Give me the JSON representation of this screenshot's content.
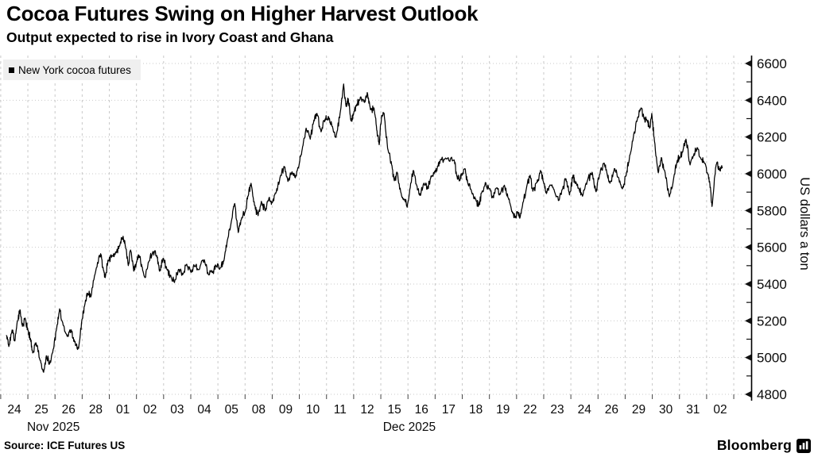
{
  "header": {
    "title": "Cocoa Futures Swing on Higher Harvest Outlook",
    "subtitle": "Output expected to rise in Ivory Coast and Ghana"
  },
  "legend": {
    "label": "New York cocoa futures"
  },
  "footer": {
    "source": "Source: ICE Futures US",
    "brand": "Bloomberg"
  },
  "chart_data": {
    "type": "line",
    "title": "Cocoa Futures Swing on Higher Harvest Outlook",
    "subtitle": "Output expected to rise in Ivory Coast and Ghana",
    "x_axis": {
      "unit": "trading-day index (0 = open of first session shown, Nov 24 2025)",
      "tick_labels": [
        "24",
        "25",
        "26",
        "28",
        "01",
        "02",
        "03",
        "04",
        "05",
        "08",
        "09",
        "10",
        "11",
        "12",
        "15",
        "16",
        "17",
        "18",
        "19",
        "22",
        "23",
        "24",
        "26",
        "29",
        "30",
        "31",
        "02"
      ],
      "month_labels": [
        {
          "label": "Nov 2025",
          "center_day": 1.94
        },
        {
          "label": "Dec 2025",
          "center_day": 15.05
        }
      ],
      "day_count": 27,
      "grid": true
    },
    "y_axis": {
      "title": "US dollars a ton",
      "min": 4800,
      "max": 6600,
      "major_step": 200,
      "minor_step": 100,
      "side": "right",
      "grid": true
    },
    "series": [
      {
        "name": "New York cocoa futures",
        "color": "#000000",
        "points": [
          [
            0.21,
            5120
          ],
          [
            0.3,
            5060
          ],
          [
            0.42,
            5150
          ],
          [
            0.52,
            5090
          ],
          [
            0.62,
            5200
          ],
          [
            0.71,
            5260
          ],
          [
            0.8,
            5170
          ],
          [
            0.9,
            5215
          ],
          [
            1.0,
            5150
          ],
          [
            1.1,
            5100
          ],
          [
            1.18,
            5025
          ],
          [
            1.3,
            5080
          ],
          [
            1.45,
            4985
          ],
          [
            1.58,
            4920
          ],
          [
            1.68,
            5010
          ],
          [
            1.8,
            4965
          ],
          [
            1.95,
            5050
          ],
          [
            2.05,
            5150
          ],
          [
            2.17,
            5265
          ],
          [
            2.3,
            5175
          ],
          [
            2.45,
            5115
          ],
          [
            2.6,
            5150
          ],
          [
            2.72,
            5085
          ],
          [
            2.87,
            5050
          ],
          [
            2.99,
            5205
          ],
          [
            3.1,
            5290
          ],
          [
            3.2,
            5350
          ],
          [
            3.32,
            5330
          ],
          [
            3.5,
            5470
          ],
          [
            3.68,
            5565
          ],
          [
            3.78,
            5480
          ],
          [
            3.85,
            5435
          ],
          [
            3.95,
            5530
          ],
          [
            4.1,
            5555
          ],
          [
            4.25,
            5570
          ],
          [
            4.4,
            5620
          ],
          [
            4.51,
            5660
          ],
          [
            4.6,
            5600
          ],
          [
            4.7,
            5500
          ],
          [
            4.78,
            5585
          ],
          [
            4.9,
            5470
          ],
          [
            5.0,
            5520
          ],
          [
            5.1,
            5555
          ],
          [
            5.2,
            5495
          ],
          [
            5.32,
            5435
          ],
          [
            5.45,
            5520
          ],
          [
            5.6,
            5575
          ],
          [
            5.75,
            5555
          ],
          [
            5.85,
            5470
          ],
          [
            5.98,
            5540
          ],
          [
            6.12,
            5480
          ],
          [
            6.28,
            5435
          ],
          [
            6.4,
            5408
          ],
          [
            6.55,
            5480
          ],
          [
            6.7,
            5450
          ],
          [
            6.85,
            5508
          ],
          [
            7.0,
            5465
          ],
          [
            7.15,
            5498
          ],
          [
            7.3,
            5478
          ],
          [
            7.5,
            5532
          ],
          [
            7.65,
            5452
          ],
          [
            7.8,
            5462
          ],
          [
            7.95,
            5498
          ],
          [
            8.1,
            5488
          ],
          [
            8.22,
            5525
          ],
          [
            8.35,
            5640
          ],
          [
            8.5,
            5745
          ],
          [
            8.62,
            5838
          ],
          [
            8.75,
            5680
          ],
          [
            8.88,
            5762
          ],
          [
            9.0,
            5792
          ],
          [
            9.1,
            5878
          ],
          [
            9.22,
            5948
          ],
          [
            9.35,
            5828
          ],
          [
            9.48,
            5772
          ],
          [
            9.6,
            5850
          ],
          [
            9.75,
            5798
          ],
          [
            9.88,
            5868
          ],
          [
            10.0,
            5842
          ],
          [
            10.15,
            5902
          ],
          [
            10.3,
            5988
          ],
          [
            10.45,
            6038
          ],
          [
            10.58,
            5958
          ],
          [
            10.72,
            6008
          ],
          [
            10.85,
            5978
          ],
          [
            11.0,
            6058
          ],
          [
            11.12,
            6148
          ],
          [
            11.25,
            6248
          ],
          [
            11.4,
            6188
          ],
          [
            11.52,
            6278
          ],
          [
            11.65,
            6328
          ],
          [
            11.8,
            6228
          ],
          [
            11.95,
            6298
          ],
          [
            12.08,
            6308
          ],
          [
            12.2,
            6258
          ],
          [
            12.35,
            6198
          ],
          [
            12.5,
            6328
          ],
          [
            12.63,
            6488
          ],
          [
            12.72,
            6368
          ],
          [
            12.8,
            6408
          ],
          [
            12.9,
            6288
          ],
          [
            13.0,
            6328
          ],
          [
            13.1,
            6368
          ],
          [
            13.25,
            6418
          ],
          [
            13.4,
            6388
          ],
          [
            13.5,
            6442
          ],
          [
            13.62,
            6348
          ],
          [
            13.75,
            6358
          ],
          [
            13.85,
            6238
          ],
          [
            13.94,
            6158
          ],
          [
            14.03,
            6318
          ],
          [
            14.12,
            6328
          ],
          [
            14.25,
            6138
          ],
          [
            14.4,
            6048
          ],
          [
            14.5,
            5962
          ],
          [
            14.6,
            6008
          ],
          [
            14.75,
            5892
          ],
          [
            14.88,
            5858
          ],
          [
            14.97,
            5818
          ],
          [
            15.1,
            5948
          ],
          [
            15.2,
            6018
          ],
          [
            15.32,
            5938
          ],
          [
            15.45,
            5882
          ],
          [
            15.6,
            5948
          ],
          [
            15.72,
            5918
          ],
          [
            15.85,
            5988
          ],
          [
            16.0,
            6012
          ],
          [
            16.1,
            6042
          ],
          [
            16.2,
            6078
          ],
          [
            16.45,
            6082
          ],
          [
            16.7,
            6075
          ],
          [
            16.8,
            5988
          ],
          [
            16.9,
            5962
          ],
          [
            17.0,
            5992
          ],
          [
            17.1,
            6028
          ],
          [
            17.2,
            5952
          ],
          [
            17.35,
            5898
          ],
          [
            17.5,
            5862
          ],
          [
            17.6,
            5825
          ],
          [
            17.72,
            5898
          ],
          [
            17.85,
            5952
          ],
          [
            18.0,
            5918
          ],
          [
            18.12,
            5872
          ],
          [
            18.25,
            5922
          ],
          [
            18.4,
            5888
          ],
          [
            18.55,
            5938
          ],
          [
            18.7,
            5868
          ],
          [
            18.82,
            5795
          ],
          [
            18.95,
            5762
          ],
          [
            19.06,
            5788
          ],
          [
            19.12,
            5758
          ],
          [
            19.25,
            5848
          ],
          [
            19.4,
            5948
          ],
          [
            19.5,
            5992
          ],
          [
            19.6,
            5905
          ],
          [
            19.75,
            5952
          ],
          [
            19.88,
            6018
          ],
          [
            20.0,
            5948
          ],
          [
            20.1,
            5892
          ],
          [
            20.25,
            5938
          ],
          [
            20.4,
            5902
          ],
          [
            20.56,
            5855
          ],
          [
            20.7,
            5918
          ],
          [
            20.82,
            5972
          ],
          [
            20.95,
            5885
          ],
          [
            21.08,
            5992
          ],
          [
            21.15,
            5952
          ],
          [
            21.3,
            5918
          ],
          [
            21.43,
            5878
          ],
          [
            21.6,
            5958
          ],
          [
            21.78,
            6008
          ],
          [
            21.93,
            5902
          ],
          [
            22.05,
            5992
          ],
          [
            22.23,
            6058
          ],
          [
            22.35,
            5988
          ],
          [
            22.44,
            5948
          ],
          [
            22.6,
            6028
          ],
          [
            22.75,
            5982
          ],
          [
            22.9,
            5918
          ],
          [
            23.05,
            6002
          ],
          [
            23.15,
            6078
          ],
          [
            23.3,
            6198
          ],
          [
            23.45,
            6298
          ],
          [
            23.58,
            6358
          ],
          [
            23.7,
            6298
          ],
          [
            23.82,
            6288
          ],
          [
            23.9,
            6248
          ],
          [
            23.98,
            6328
          ],
          [
            24.08,
            6178
          ],
          [
            24.22,
            6005
          ],
          [
            24.33,
            6088
          ],
          [
            24.45,
            6018
          ],
          [
            24.63,
            5875
          ],
          [
            24.8,
            5988
          ],
          [
            24.92,
            6072
          ],
          [
            25.0,
            6085
          ],
          [
            25.12,
            6118
          ],
          [
            25.24,
            6188
          ],
          [
            25.39,
            6048
          ],
          [
            25.52,
            6098
          ],
          [
            25.65,
            6142
          ],
          [
            25.8,
            6078
          ],
          [
            25.92,
            6058
          ],
          [
            26.03,
            6005
          ],
          [
            26.12,
            5945
          ],
          [
            26.2,
            5822
          ],
          [
            26.3,
            5988
          ],
          [
            26.38,
            6062
          ],
          [
            26.48,
            6018
          ],
          [
            26.58,
            6035
          ]
        ]
      }
    ],
    "annotations": {
      "session_low": 4920,
      "session_high": 6490,
      "last_value": 6035
    },
    "style": {
      "line_color": "#000000",
      "grid_color": "#c9c9c9",
      "tick_color": "#111111",
      "legend_bg": "#efefef",
      "jitter": 22,
      "sub_steps": 7
    }
  }
}
